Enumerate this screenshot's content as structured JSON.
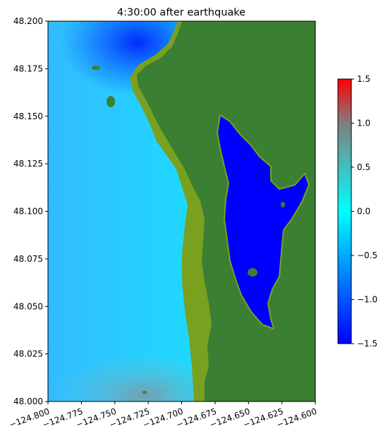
{
  "chart_data": {
    "type": "heatmap",
    "title": "4:30:00 after earthquake",
    "xlim": [
      -124.8,
      -124.6
    ],
    "ylim": [
      48.0,
      48.2
    ],
    "x_ticks": [
      -124.8,
      -124.775,
      -124.75,
      -124.725,
      -124.7,
      -124.675,
      -124.65,
      -124.625,
      -124.6
    ],
    "x_tick_labels": [
      "−124.800",
      "−124.775",
      "−124.750",
      "−124.725",
      "−124.700",
      "−124.675",
      "−124.650",
      "−124.625",
      "−124.600"
    ],
    "y_ticks": [
      48.0,
      48.025,
      48.05,
      48.075,
      48.1,
      48.125,
      48.15,
      48.175,
      48.2
    ],
    "y_tick_labels": [
      "48.000",
      "48.025",
      "48.050",
      "48.075",
      "48.100",
      "48.125",
      "48.150",
      "48.175",
      "48.200"
    ],
    "colorbar": {
      "range": [
        -1.5,
        1.5
      ],
      "ticks": [
        -1.5,
        -1.0,
        -0.5,
        0.0,
        0.5,
        1.0,
        1.5
      ],
      "tick_labels": [
        "−1.5",
        "−1.0",
        "−0.5",
        "0.0",
        "0.5",
        "1.0",
        "1.5"
      ],
      "colors": [
        "#0000ff",
        "#00ffff",
        "#ff0000"
      ]
    },
    "land_color": "#3b7f33",
    "shallow_land_color": "#7aa020",
    "grid": false
  }
}
